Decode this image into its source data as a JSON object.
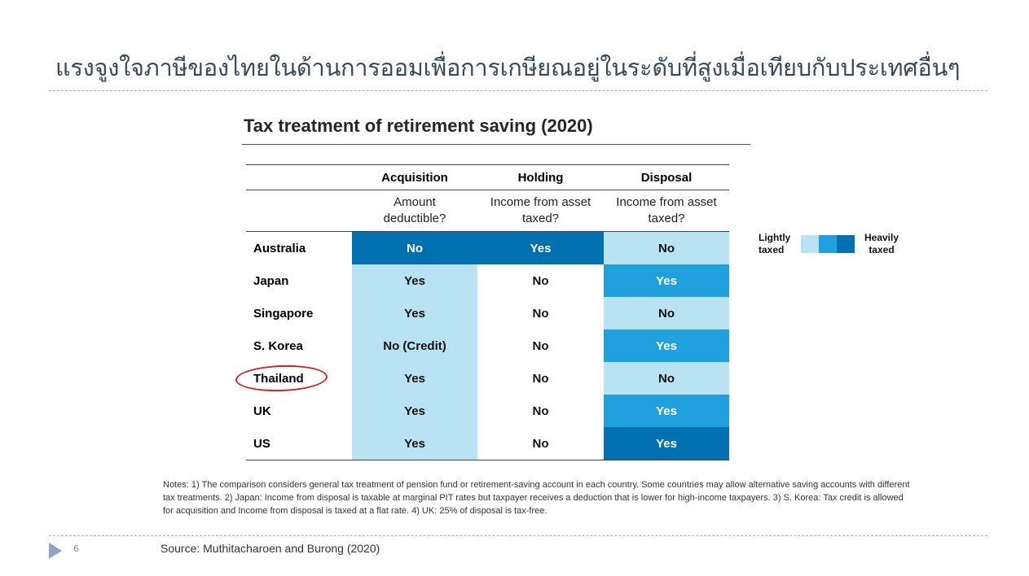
{
  "slide": {
    "title": "แรงจูงใจภาษีของไทยในด้านการออมเพื่อการเกษียณอยู่ในระดับที่สูงเมื่อเทียบกับประเทศอื่นๆ",
    "table_heading": "Tax treatment of retirement saving (2020)",
    "page_number": "6",
    "source": "Source: Muthitacharoen and Burong (2020)",
    "notes": "Notes: 1) The comparison considers general tax treatment of pension fund or retirement-saving account in each country. Some countries may allow alternative saving accounts with different tax treatments. 2) Japan: Income from disposal is taxable at marginal PIT rates but taxpayer receives a deduction that is lower for high-income taxpayers. 3) S. Korea: Tax credit is allowed for acquisition and Income from disposal is taxed at a flat rate. 4) UK: 25% of disposal is tax-free."
  },
  "table": {
    "columns": [
      {
        "header": "Acquisition",
        "sub1": "Amount",
        "sub2": "deductible?"
      },
      {
        "header": "Holding",
        "sub1": "Income from asset",
        "sub2": "taxed?"
      },
      {
        "header": "Disposal",
        "sub1": "Income from asset",
        "sub2": "taxed?"
      }
    ],
    "rows": [
      {
        "country": "Australia",
        "cells": [
          {
            "value": "No",
            "level": 3
          },
          {
            "value": "Yes",
            "level": 3
          },
          {
            "value": "No",
            "level": 1
          }
        ]
      },
      {
        "country": "Japan",
        "cells": [
          {
            "value": "Yes",
            "level": 1
          },
          {
            "value": "No",
            "level": 0
          },
          {
            "value": "Yes",
            "level": 2
          }
        ]
      },
      {
        "country": "Singapore",
        "cells": [
          {
            "value": "Yes",
            "level": 1
          },
          {
            "value": "No",
            "level": 0
          },
          {
            "value": "No",
            "level": 1
          }
        ]
      },
      {
        "country": "S. Korea",
        "cells": [
          {
            "value": "No (Credit)",
            "level": 1
          },
          {
            "value": "No",
            "level": 0
          },
          {
            "value": "Yes",
            "level": 2
          }
        ]
      },
      {
        "country": "Thailand",
        "cells": [
          {
            "value": "Yes",
            "level": 1
          },
          {
            "value": "No",
            "level": 0
          },
          {
            "value": "No",
            "level": 1
          }
        ]
      },
      {
        "country": "UK",
        "cells": [
          {
            "value": "Yes",
            "level": 1
          },
          {
            "value": "No",
            "level": 0
          },
          {
            "value": "Yes",
            "level": 2
          }
        ]
      },
      {
        "country": "US",
        "cells": [
          {
            "value": "Yes",
            "level": 1
          },
          {
            "value": "No",
            "level": 0
          },
          {
            "value": "Yes",
            "level": 3
          }
        ]
      }
    ],
    "highlighted_country": "Thailand"
  },
  "legend": {
    "left_line1": "Lightly",
    "left_line2": "taxed",
    "right_line1": "Heavily",
    "right_line2": "taxed",
    "colors": [
      "#b9e2f3",
      "#20a0dc",
      "#0070b0"
    ]
  }
}
